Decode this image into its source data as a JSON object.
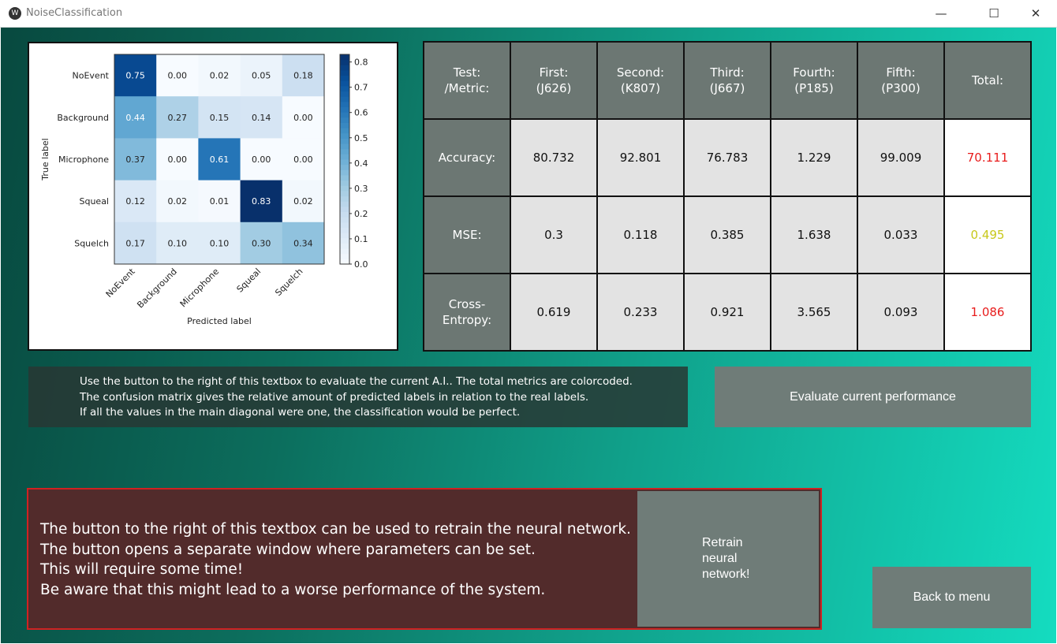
{
  "window": {
    "title": "NoiseClassification",
    "minimize": "—",
    "maximize": "☐",
    "close": "✕"
  },
  "chart_data": {
    "type": "heatmap",
    "title": "",
    "xlabel": "Predicted label",
    "ylabel": "True label",
    "x_categories": [
      "NoEvent",
      "Background",
      "Microphone",
      "Squeal",
      "Squelch"
    ],
    "y_categories": [
      "NoEvent",
      "Background",
      "Microphone",
      "Squeal",
      "Squelch"
    ],
    "values": [
      [
        0.75,
        0.0,
        0.02,
        0.05,
        0.18
      ],
      [
        0.44,
        0.27,
        0.15,
        0.14,
        0.0
      ],
      [
        0.37,
        0.0,
        0.61,
        0.0,
        0.0
      ],
      [
        0.12,
        0.02,
        0.01,
        0.83,
        0.02
      ],
      [
        0.17,
        0.1,
        0.1,
        0.3,
        0.34
      ]
    ],
    "colorbar": {
      "range": [
        0,
        0.83
      ],
      "ticks": [
        "0.0",
        "0.1",
        "0.2",
        "0.3",
        "0.4",
        "0.5",
        "0.6",
        "0.7",
        "0.8"
      ],
      "colormap": "Blues"
    }
  },
  "table": {
    "header": [
      "Test:\n/Metric:",
      "First:\n(J626)",
      "Second:\n(K807)",
      "Third:\n(J667)",
      "Fourth:\n(P185)",
      "Fifth:\n(P300)",
      "Total:"
    ],
    "rows": [
      {
        "label": "Accuracy:",
        "values": [
          "80.732",
          "92.801",
          "76.783",
          "1.229",
          "99.009"
        ],
        "total": "70.111",
        "total_color": "#e81c1c"
      },
      {
        "label": "MSE:",
        "values": [
          "0.3",
          "0.118",
          "0.385",
          "1.638",
          "0.033"
        ],
        "total": "0.495",
        "total_color": "#c8c81a"
      },
      {
        "label": "Cross-\nEntropy:",
        "values": [
          "0.619",
          "0.233",
          "0.921",
          "3.565",
          "0.093"
        ],
        "total": "1.086",
        "total_color": "#e81c1c"
      }
    ]
  },
  "info": {
    "lines": [
      "Use the button to the right of this textbox to evaluate the current A.I.. The total metrics are colorcoded.",
      "The confusion matrix gives the relative amount of predicted labels in relation to the real labels.",
      "If all the values in the main diagonal were one, the classification would be perfect."
    ]
  },
  "evaluate_label": "Evaluate current performance",
  "retrain": {
    "lines": [
      "The button to the right of this textbox can be used to retrain the neural network.",
      "The button opens a separate window where parameters can be set.",
      "This will require some time!",
      "Be aware that this might lead to a worse performance of the system."
    ],
    "button": "Retrain\nneural\nnetwork!"
  },
  "back_label": "Back to menu"
}
